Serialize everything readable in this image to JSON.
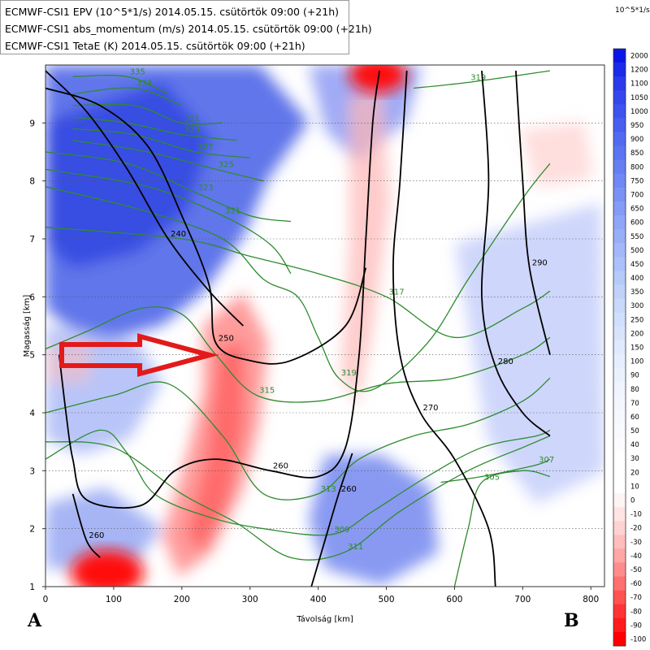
{
  "legend": {
    "lines": [
      "ECMWF-CSI1 EPV (10^5*1/s) 2014.05.15. csütörtök 09:00 (+21h)",
      "ECMWF-CSI1 abs_momentum (m/s) 2014.05.15. csütörtök 09:00 (+21h)",
      "ECMWF-CSI1 TetaE (K) 2014.05.15. csütörtök 09:00 (+21h)"
    ]
  },
  "colorbar": {
    "unit": "10^5*1/s",
    "labels": [
      "2000",
      "1200",
      "1100",
      "1050",
      "1000",
      "950",
      "900",
      "850",
      "800",
      "750",
      "700",
      "650",
      "600",
      "550",
      "500",
      "450",
      "400",
      "350",
      "300",
      "250",
      "200",
      "150",
      "100",
      "90",
      "80",
      "70",
      "60",
      "50",
      "40",
      "30",
      "20",
      "10",
      "0",
      "-10",
      "-20",
      "-30",
      "-40",
      "-50",
      "-60",
      "-70",
      "-80",
      "-90",
      "-100"
    ],
    "colors": [
      "#0a16e6",
      "#1a2ae8",
      "#2a3aea",
      "#3446ec",
      "#3e52ee",
      "#485eef",
      "#526af0",
      "#5c74f1",
      "#667ef2",
      "#7088f3",
      "#7a92f4",
      "#849cf5",
      "#8ea6f6",
      "#98aff7",
      "#a2b8f8",
      "#acc1f9",
      "#b6caf9",
      "#c0d2fa",
      "#c8d9fb",
      "#d0dffc",
      "#d8e4fc",
      "#e0e9fd",
      "#e6eefd",
      "#ebf1fe",
      "#f0f4fe",
      "#f3f6fe",
      "#f6f8ff",
      "#f9faff",
      "#fcfcff",
      "#ffffff",
      "#ffffff",
      "#ffffff",
      "#fff4f4",
      "#ffe4e4",
      "#ffd2d2",
      "#ffbebe",
      "#ffa6a6",
      "#ff8c8c",
      "#ff7070",
      "#ff5252",
      "#ff3434",
      "#ff1c1c",
      "#ff0000"
    ]
  },
  "labels": {
    "a": "A",
    "b": "B"
  },
  "chart_data": {
    "type": "contour",
    "xlabel": "Távolság [km]",
    "ylabel": "Magasság [km]",
    "xlim": [
      0,
      820
    ],
    "ylim": [
      1,
      10
    ],
    "x_ticks": [
      0,
      100,
      200,
      300,
      400,
      500,
      600,
      700,
      800
    ],
    "y_ticks": [
      1,
      2,
      3,
      4,
      5,
      6,
      7,
      8,
      9
    ],
    "grid": "dotted horizontal",
    "abs_momentum_contours": [
      {
        "label": "240",
        "points": [
          [
            0,
            9.9
          ],
          [
            60,
            9.2
          ],
          [
            120,
            8.2
          ],
          [
            180,
            7.0
          ],
          [
            240,
            6.1
          ],
          [
            290,
            5.5
          ]
        ]
      },
      {
        "label": "250",
        "points": [
          [
            0,
            9.6
          ],
          [
            80,
            9.3
          ],
          [
            150,
            8.6
          ],
          [
            200,
            7.4
          ],
          [
            240,
            6.2
          ],
          [
            250,
            5.2
          ],
          [
            300,
            4.9
          ],
          [
            360,
            4.9
          ],
          [
            440,
            5.5
          ],
          [
            470,
            6.5
          ]
        ]
      },
      {
        "label": "260",
        "points": [
          [
            20,
            5.0
          ],
          [
            30,
            4.0
          ],
          [
            40,
            3.2
          ],
          [
            60,
            2.5
          ],
          [
            140,
            2.4
          ],
          [
            190,
            3.0
          ],
          [
            250,
            3.2
          ],
          [
            330,
            3.0
          ],
          [
            400,
            2.9
          ],
          [
            440,
            3.4
          ],
          [
            460,
            5.0
          ],
          [
            470,
            7.0
          ],
          [
            480,
            9.0
          ],
          [
            490,
            9.9
          ]
        ]
      },
      {
        "label": "260",
        "points": [
          [
            40,
            2.6
          ],
          [
            60,
            1.8
          ],
          [
            80,
            1.5
          ]
        ]
      },
      {
        "label": "260",
        "points": [
          [
            390,
            1.0
          ],
          [
            410,
            1.8
          ],
          [
            430,
            2.6
          ],
          [
            450,
            3.3
          ]
        ]
      },
      {
        "label": "270",
        "points": [
          [
            530,
            9.9
          ],
          [
            520,
            8.0
          ],
          [
            510,
            6.5
          ],
          [
            520,
            5.0
          ],
          [
            550,
            4.0
          ],
          [
            600,
            3.2
          ],
          [
            650,
            2.0
          ],
          [
            660,
            1.0
          ]
        ]
      },
      {
        "label": "280",
        "points": [
          [
            640,
            9.9
          ],
          [
            650,
            8.0
          ],
          [
            640,
            6.0
          ],
          [
            660,
            4.8
          ],
          [
            700,
            4.0
          ],
          [
            740,
            3.6
          ]
        ]
      },
      {
        "label": "290",
        "points": [
          [
            690,
            9.9
          ],
          [
            700,
            8.0
          ],
          [
            710,
            6.5
          ],
          [
            740,
            5.0
          ]
        ]
      }
    ],
    "theta_e_contours": [
      {
        "label": "335",
        "points": [
          [
            40,
            9.8
          ],
          [
            120,
            9.8
          ],
          [
            180,
            9.5
          ]
        ]
      },
      {
        "label": "333",
        "points": [
          [
            40,
            9.5
          ],
          [
            130,
            9.6
          ],
          [
            200,
            9.3
          ]
        ]
      },
      {
        "label": "331",
        "points": [
          [
            40,
            9.3
          ],
          [
            130,
            9.3
          ],
          [
            200,
            9.0
          ],
          [
            260,
            9.0
          ]
        ]
      },
      {
        "label": "329",
        "points": [
          [
            40,
            9.1
          ],
          [
            120,
            9.0
          ],
          [
            200,
            8.8
          ],
          [
            280,
            8.7
          ]
        ]
      },
      {
        "label": "327",
        "points": [
          [
            40,
            8.9
          ],
          [
            130,
            8.8
          ],
          [
            220,
            8.5
          ],
          [
            300,
            8.4
          ]
        ]
      },
      {
        "label": "325",
        "points": [
          [
            40,
            8.7
          ],
          [
            150,
            8.5
          ],
          [
            250,
            8.2
          ],
          [
            320,
            8.0
          ]
        ]
      },
      {
        "label": "323",
        "points": [
          [
            0,
            8.5
          ],
          [
            120,
            8.3
          ],
          [
            220,
            7.8
          ],
          [
            300,
            7.4
          ],
          [
            360,
            7.3
          ]
        ]
      },
      {
        "label": "321",
        "points": [
          [
            0,
            8.2
          ],
          [
            150,
            7.9
          ],
          [
            260,
            7.4
          ],
          [
            330,
            6.9
          ],
          [
            360,
            6.4
          ]
        ]
      },
      {
        "label": "319",
        "points": [
          [
            0,
            7.9
          ],
          [
            140,
            7.5
          ],
          [
            260,
            7.0
          ],
          [
            320,
            6.3
          ],
          [
            370,
            6.0
          ],
          [
            400,
            5.3
          ],
          [
            430,
            4.6
          ],
          [
            480,
            4.4
          ],
          [
            560,
            5.2
          ],
          [
            620,
            6.3
          ],
          [
            700,
            7.7
          ],
          [
            740,
            8.3
          ]
        ]
      },
      {
        "label": "319",
        "points": [
          [
            540,
            9.6
          ],
          [
            620,
            9.7
          ],
          [
            740,
            9.9
          ]
        ]
      },
      {
        "label": "317",
        "points": [
          [
            0,
            7.2
          ],
          [
            200,
            7.0
          ],
          [
            300,
            6.7
          ],
          [
            400,
            6.4
          ],
          [
            500,
            6.0
          ],
          [
            600,
            5.3
          ],
          [
            700,
            5.8
          ],
          [
            740,
            6.1
          ]
        ]
      },
      {
        "label": "315",
        "points": [
          [
            0,
            5.1
          ],
          [
            60,
            5.4
          ],
          [
            140,
            5.8
          ],
          [
            200,
            5.7
          ],
          [
            250,
            5.0
          ],
          [
            310,
            4.3
          ],
          [
            400,
            4.2
          ],
          [
            500,
            4.5
          ],
          [
            600,
            4.6
          ],
          [
            700,
            5.0
          ],
          [
            740,
            5.3
          ]
        ]
      },
      {
        "label": "313",
        "points": [
          [
            0,
            4.0
          ],
          [
            100,
            4.3
          ],
          [
            180,
            4.5
          ],
          [
            260,
            3.6
          ],
          [
            320,
            2.6
          ],
          [
            400,
            2.6
          ],
          [
            460,
            3.2
          ],
          [
            540,
            3.6
          ],
          [
            620,
            3.8
          ],
          [
            700,
            4.2
          ],
          [
            740,
            4.6
          ]
        ]
      },
      {
        "label": "311",
        "points": [
          [
            0,
            3.5
          ],
          [
            100,
            3.4
          ],
          [
            200,
            2.6
          ],
          [
            280,
            2.1
          ],
          [
            360,
            1.5
          ],
          [
            440,
            1.6
          ],
          [
            520,
            2.3
          ],
          [
            620,
            3.0
          ],
          [
            700,
            3.4
          ],
          [
            740,
            3.6
          ]
        ]
      },
      {
        "label": "309",
        "points": [
          [
            0,
            3.2
          ],
          [
            80,
            3.7
          ],
          [
            120,
            3.3
          ],
          [
            160,
            2.6
          ],
          [
            240,
            2.2
          ],
          [
            320,
            2.0
          ],
          [
            420,
            1.9
          ],
          [
            480,
            2.3
          ],
          [
            560,
            2.9
          ],
          [
            640,
            3.4
          ],
          [
            720,
            3.6
          ],
          [
            740,
            3.7
          ]
        ]
      },
      {
        "label": "307",
        "points": [
          [
            580,
            2.8
          ],
          [
            640,
            2.9
          ],
          [
            720,
            3.1
          ],
          [
            740,
            3.2
          ]
        ]
      },
      {
        "label": "305",
        "points": [
          [
            600,
            1.0
          ],
          [
            620,
            2.0
          ],
          [
            640,
            2.8
          ],
          [
            700,
            3.0
          ],
          [
            740,
            2.9
          ]
        ]
      }
    ]
  }
}
